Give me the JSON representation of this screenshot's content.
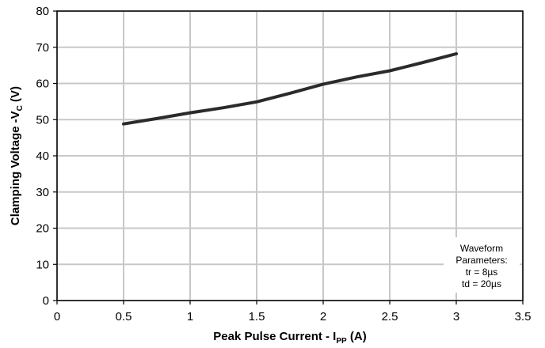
{
  "chart_data": {
    "type": "line",
    "x": [
      0.5,
      0.75,
      1.0,
      1.25,
      1.5,
      1.75,
      2.0,
      2.25,
      2.5,
      2.75,
      3.0
    ],
    "series": [
      {
        "values": [
          48.8,
          50.3,
          51.9,
          53.3,
          54.9,
          57.3,
          59.8,
          61.8,
          63.5,
          65.8,
          68.2
        ]
      }
    ],
    "xlabel": {
      "main": "Peak Pulse Current - I",
      "sub": "PP",
      "unit": " (A)"
    },
    "ylabel": {
      "main": "Clamping Voltage -V",
      "sub": "C",
      "unit": " (V)"
    },
    "xlim": [
      0,
      3.5
    ],
    "ylim": [
      0,
      80
    ],
    "xticks": [
      0,
      0.5,
      1,
      1.5,
      2,
      2.5,
      3,
      3.5
    ],
    "xtick_labels": [
      "0",
      "0.5",
      "1",
      "1.5",
      "2",
      "2.5",
      "3",
      "3.5"
    ],
    "yticks": [
      0,
      10,
      20,
      30,
      40,
      50,
      60,
      70,
      80
    ],
    "ytick_labels": [
      "0",
      "10",
      "20",
      "30",
      "40",
      "50",
      "60",
      "70",
      "80"
    ],
    "grid": true,
    "annotation": {
      "lines": [
        "Waveform",
        "Parameters:",
        "tr = 8µs",
        "td = 20µs"
      ],
      "placement": "bottom-right"
    },
    "colors": {
      "line": "#2b2b2b",
      "grid": "#c8c8c8",
      "axis": "#000000"
    }
  }
}
